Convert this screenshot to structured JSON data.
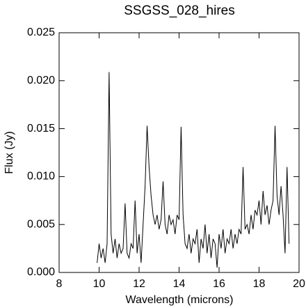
{
  "chart_data": {
    "type": "line",
    "title": "SSGSS_028_hires",
    "x_label": "Wavelength (microns)",
    "y_label": "Flux (Jy)",
    "color": "#000000",
    "x": [
      9.9,
      10.0,
      10.1,
      10.2,
      10.3,
      10.4,
      10.5,
      10.6,
      10.7,
      10.8,
      10.9,
      11.0,
      11.1,
      11.2,
      11.3,
      11.4,
      11.5,
      11.6,
      11.7,
      11.8,
      11.9,
      12.0,
      12.1,
      12.2,
      12.3,
      12.4,
      12.5,
      12.6,
      12.7,
      12.8,
      12.9,
      13.0,
      13.1,
      13.2,
      13.3,
      13.4,
      13.5,
      13.6,
      13.7,
      13.8,
      13.9,
      14.0,
      14.1,
      14.2,
      14.3,
      14.4,
      14.5,
      14.6,
      14.7,
      14.8,
      14.9,
      15.0,
      15.1,
      15.2,
      15.3,
      15.4,
      15.5,
      15.6,
      15.7,
      15.8,
      15.9,
      16.0,
      16.1,
      16.2,
      16.3,
      16.4,
      16.5,
      16.6,
      16.7,
      16.8,
      16.9,
      17.0,
      17.1,
      17.2,
      17.3,
      17.4,
      17.5,
      17.6,
      17.7,
      17.8,
      17.9,
      18.0,
      18.1,
      18.2,
      18.3,
      18.4,
      18.5,
      18.6,
      18.7,
      18.8,
      18.9,
      19.0,
      19.1,
      19.2,
      19.3,
      19.4,
      19.5
    ],
    "values": [
      0.001,
      0.003,
      0.0015,
      0.0025,
      0.001,
      0.003,
      0.0209,
      0.004,
      0.002,
      0.0035,
      0.0015,
      0.003,
      0.002,
      0.0025,
      0.0072,
      0.002,
      0.0015,
      0.003,
      0.0025,
      0.0075,
      0.002,
      0.004,
      0.001,
      0.005,
      0.009,
      0.0153,
      0.011,
      0.008,
      0.006,
      0.005,
      0.006,
      0.0045,
      0.0055,
      0.0095,
      0.005,
      0.004,
      0.006,
      0.005,
      0.0055,
      0.004,
      0.006,
      0.0055,
      0.0152,
      0.006,
      0.003,
      0.0025,
      0.004,
      0.002,
      0.0035,
      0.003,
      0.0045,
      0.001,
      0.0035,
      0.0025,
      0.005,
      0.002,
      0.004,
      0.0015,
      0.0035,
      0.003,
      0.0005,
      0.004,
      0.0025,
      0.0045,
      0.002,
      0.0035,
      0.003,
      0.0045,
      0.0025,
      0.004,
      0.003,
      0.0045,
      0.004,
      0.011,
      0.0045,
      0.005,
      0.004,
      0.006,
      0.0045,
      0.0065,
      0.006,
      0.0075,
      0.005,
      0.0085,
      0.006,
      0.007,
      0.005,
      0.0065,
      0.0075,
      0.0153,
      0.008,
      0.006,
      0.009,
      0.006,
      0.002,
      0.011,
      0.003
    ],
    "xlim": [
      8,
      20
    ],
    "xticks": [
      8,
      10,
      12,
      14,
      16,
      18,
      20
    ],
    "ylim": [
      0,
      0.025
    ],
    "yticks": [
      {
        "value": 0,
        "label": "0.000"
      },
      0.005,
      {
        "value": 0.01,
        "label": "0.010"
      },
      0.015,
      {
        "value": 0.02,
        "label": "0.020"
      },
      0.025
    ]
  }
}
